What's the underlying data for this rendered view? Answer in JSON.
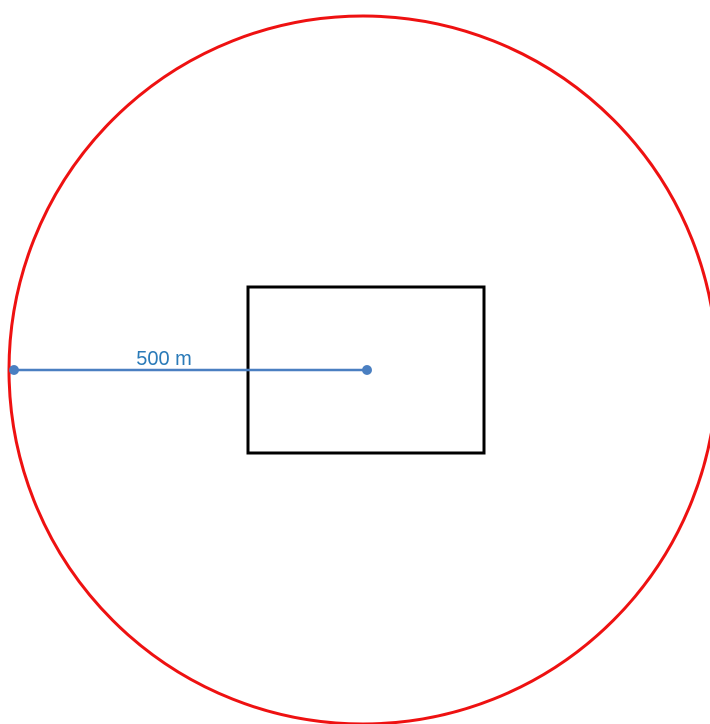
{
  "radius_label": "500 m"
}
